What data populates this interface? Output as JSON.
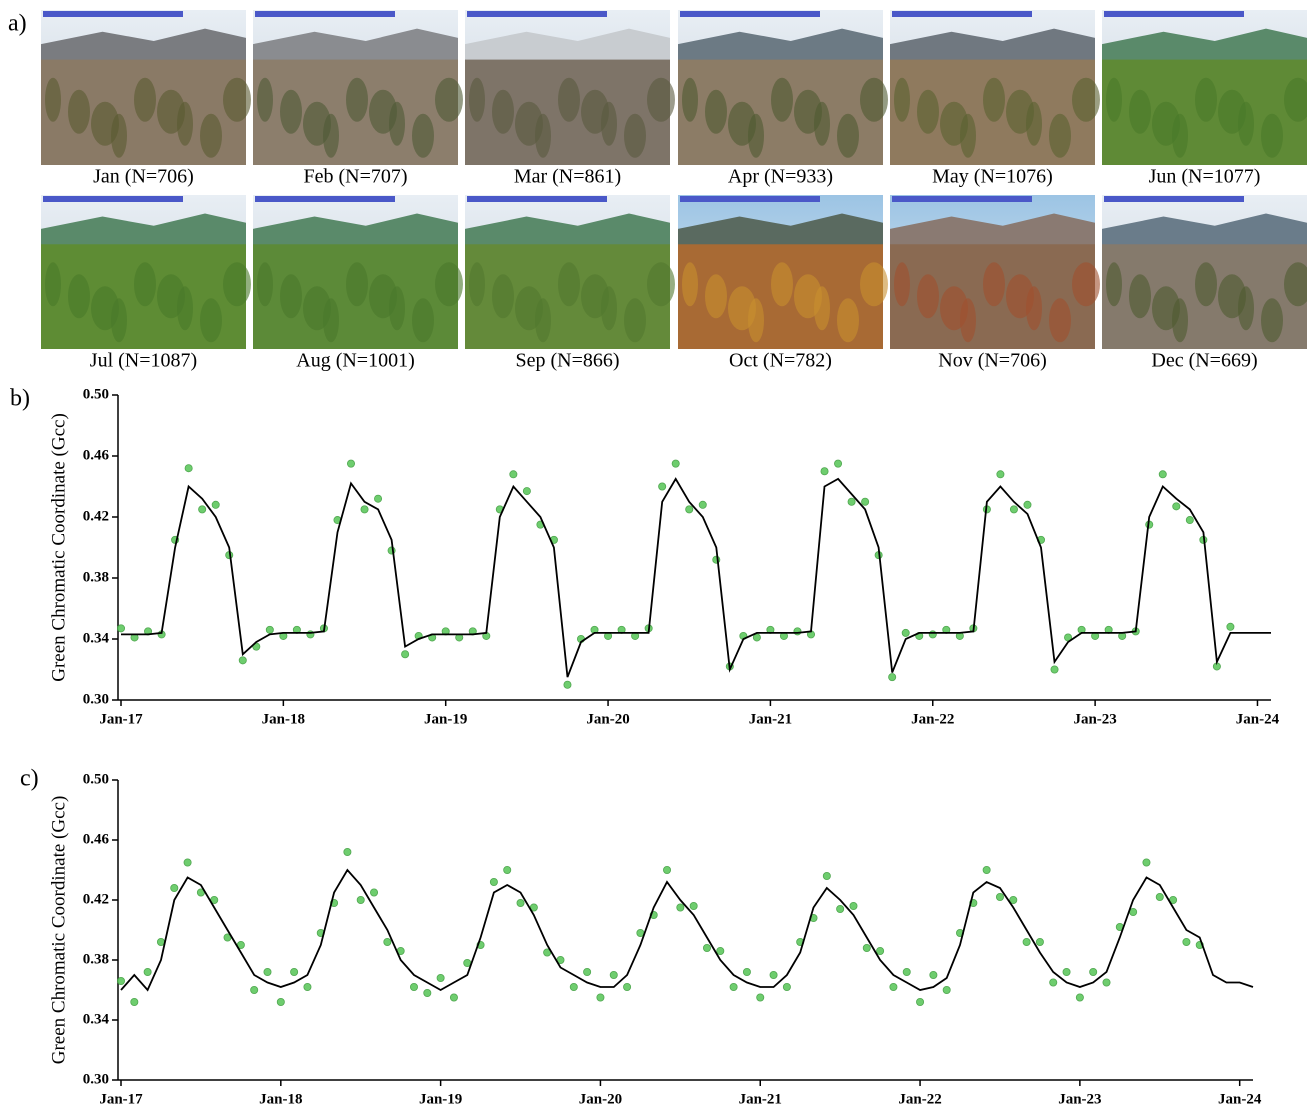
{
  "photos": {
    "label": "a)",
    "captions": [
      "Jan (N=706)",
      "Feb (N=707)",
      "Mar (N=861)",
      "Apr (N=933)",
      "May (N=1076)",
      "Jun (N=1077)",
      "Jul (N=1087)",
      "Aug (N=1001)",
      "Sep (N=866)",
      "Oct (N=782)",
      "Nov (N=706)",
      "Dec (N=669)"
    ]
  },
  "chart_data": [
    {
      "type": "scatter",
      "panel_label": "b)",
      "y_label": "Green Chromatic Coordinate (Gcc)",
      "x": [
        "Jan-17",
        "Feb-17",
        "Mar-17",
        "Apr-17",
        "May-17",
        "Jun-17",
        "Jul-17",
        "Aug-17",
        "Sep-17",
        "Oct-17",
        "Nov-17",
        "Dec-17",
        "Jan-18",
        "Feb-18",
        "Mar-18",
        "Apr-18",
        "May-18",
        "Jun-18",
        "Jul-18",
        "Aug-18",
        "Sep-18",
        "Oct-18",
        "Nov-18",
        "Dec-18",
        "Jan-19",
        "Feb-19",
        "Mar-19",
        "Apr-19",
        "May-19",
        "Jun-19",
        "Jul-19",
        "Aug-19",
        "Sep-19",
        "Oct-19",
        "Nov-19",
        "Dec-19",
        "Jan-20",
        "Feb-20",
        "Mar-20",
        "Apr-20",
        "May-20",
        "Jun-20",
        "Jul-20",
        "Aug-20",
        "Sep-20",
        "Oct-20",
        "Nov-20",
        "Dec-20",
        "Jan-21",
        "Feb-21",
        "Mar-21",
        "Apr-21",
        "May-21",
        "Jun-21",
        "Jul-21",
        "Aug-21",
        "Sep-21",
        "Oct-21",
        "Nov-21",
        "Dec-21",
        "Jan-22",
        "Feb-22",
        "Mar-22",
        "Apr-22",
        "May-22",
        "Jun-22",
        "Jul-22",
        "Aug-22",
        "Sep-22",
        "Oct-22",
        "Nov-22",
        "Dec-22",
        "Jan-23",
        "Feb-23",
        "Mar-23",
        "Apr-23",
        "May-23",
        "Jun-23",
        "Jul-23",
        "Aug-23",
        "Sep-23",
        "Oct-23",
        "Nov-23",
        "Dec-23",
        "Jan-24",
        "Feb-24"
      ],
      "series": [
        {
          "type": "scatter",
          "color": "#5fc85f",
          "values": [
            0.347,
            0.341,
            0.345,
            0.343,
            0.405,
            0.452,
            0.425,
            0.428,
            0.395,
            0.326,
            0.335,
            0.346,
            0.342,
            0.346,
            0.343,
            0.347,
            0.418,
            0.455,
            0.425,
            0.432,
            0.398,
            0.33,
            0.342,
            0.341,
            0.345,
            0.341,
            0.345,
            0.342,
            0.425,
            0.448,
            0.437,
            0.415,
            0.405,
            0.31,
            0.34,
            0.346,
            0.342,
            0.346,
            0.342,
            0.347,
            0.44,
            0.455,
            0.425,
            0.428,
            0.392,
            0.322,
            0.342,
            0.341,
            0.346,
            0.342,
            0.345,
            0.343,
            0.45,
            0.455,
            0.43,
            0.43,
            0.395,
            0.315,
            0.344,
            0.342,
            0.343,
            0.346,
            0.342,
            0.347,
            0.425,
            0.448,
            0.425,
            0.428,
            0.405,
            0.32,
            0.341,
            0.346,
            0.342,
            0.346,
            0.342,
            0.345,
            0.415,
            0.448,
            0.427,
            0.418,
            0.405,
            0.322,
            0.348,
            null,
            null,
            null
          ]
        },
        {
          "type": "line",
          "color": "#000000",
          "values": [
            0.343,
            0.343,
            0.343,
            0.344,
            0.4,
            0.44,
            0.432,
            0.42,
            0.4,
            0.33,
            0.338,
            0.343,
            0.344,
            0.344,
            0.344,
            0.345,
            0.41,
            0.442,
            0.43,
            0.425,
            0.405,
            0.335,
            0.34,
            0.343,
            0.343,
            0.343,
            0.343,
            0.344,
            0.42,
            0.44,
            0.43,
            0.42,
            0.4,
            0.315,
            0.338,
            0.344,
            0.344,
            0.344,
            0.344,
            0.344,
            0.43,
            0.445,
            0.43,
            0.42,
            0.4,
            0.32,
            0.34,
            0.344,
            0.344,
            0.344,
            0.344,
            0.345,
            0.44,
            0.445,
            0.435,
            0.425,
            0.4,
            0.318,
            0.34,
            0.344,
            0.344,
            0.344,
            0.344,
            0.345,
            0.43,
            0.44,
            0.43,
            0.422,
            0.4,
            0.325,
            0.338,
            0.344,
            0.344,
            0.344,
            0.344,
            0.345,
            0.42,
            0.44,
            0.432,
            0.425,
            0.41,
            0.325,
            0.344,
            0.344,
            0.344,
            0.344
          ]
        }
      ],
      "xlim": [
        "Jan-17",
        "Feb-24"
      ],
      "xticks": [
        "Jan-17",
        "Jan-18",
        "Jan-19",
        "Jan-20",
        "Jan-21",
        "Jan-22",
        "Jan-23",
        "Jan-24"
      ],
      "ylim": [
        0.3,
        0.5
      ],
      "yticks": [
        {
          "value": 0.3,
          "label": "0.30"
        },
        0.34,
        0.38,
        0.42,
        0.46,
        {
          "value": 0.5,
          "label": "0.50"
        }
      ]
    },
    {
      "type": "scatter",
      "panel_label": "c)",
      "y_label": "Green Chromatic Coordinate (Gcc)",
      "x": [
        "Jan-17",
        "Feb-17",
        "Mar-17",
        "Apr-17",
        "May-17",
        "Jun-17",
        "Jul-17",
        "Aug-17",
        "Sep-17",
        "Oct-17",
        "Nov-17",
        "Dec-17",
        "Jan-18",
        "Feb-18",
        "Mar-18",
        "Apr-18",
        "May-18",
        "Jun-18",
        "Jul-18",
        "Aug-18",
        "Sep-18",
        "Oct-18",
        "Nov-18",
        "Dec-18",
        "Jan-19",
        "Feb-19",
        "Mar-19",
        "Apr-19",
        "May-19",
        "Jun-19",
        "Jul-19",
        "Aug-19",
        "Sep-19",
        "Oct-19",
        "Nov-19",
        "Dec-19",
        "Jan-20",
        "Feb-20",
        "Mar-20",
        "Apr-20",
        "May-20",
        "Jun-20",
        "Jul-20",
        "Aug-20",
        "Sep-20",
        "Oct-20",
        "Nov-20",
        "Dec-20",
        "Jan-21",
        "Feb-21",
        "Mar-21",
        "Apr-21",
        "May-21",
        "Jun-21",
        "Jul-21",
        "Aug-21",
        "Sep-21",
        "Oct-21",
        "Nov-21",
        "Dec-21",
        "Jan-22",
        "Feb-22",
        "Mar-22",
        "Apr-22",
        "May-22",
        "Jun-22",
        "Jul-22",
        "Aug-22",
        "Sep-22",
        "Oct-22",
        "Nov-22",
        "Dec-22",
        "Jan-23",
        "Feb-23",
        "Mar-23",
        "Apr-23",
        "May-23",
        "Jun-23",
        "Jul-23",
        "Aug-23",
        "Sep-23",
        "Oct-23",
        "Nov-23",
        "Dec-23",
        "Jan-24",
        "Feb-24"
      ],
      "series": [
        {
          "type": "scatter",
          "color": "#5fc85f",
          "values": [
            0.366,
            0.352,
            0.372,
            0.392,
            0.428,
            0.445,
            0.425,
            0.42,
            0.395,
            0.39,
            0.36,
            0.372,
            0.352,
            0.372,
            0.362,
            0.398,
            0.418,
            0.452,
            0.42,
            0.425,
            0.392,
            0.386,
            0.362,
            0.358,
            0.368,
            0.355,
            0.378,
            0.39,
            0.432,
            0.44,
            0.418,
            0.415,
            0.385,
            0.38,
            0.362,
            0.372,
            0.355,
            0.37,
            0.362,
            0.398,
            0.41,
            0.44,
            0.415,
            0.416,
            0.388,
            0.386,
            0.362,
            0.372,
            0.355,
            0.37,
            0.362,
            0.392,
            0.408,
            0.436,
            0.414,
            0.416,
            0.388,
            0.386,
            0.362,
            0.372,
            0.352,
            0.37,
            0.36,
            0.398,
            0.418,
            0.44,
            0.422,
            0.42,
            0.392,
            0.392,
            0.365,
            0.372,
            0.355,
            0.372,
            0.365,
            0.402,
            0.412,
            0.445,
            0.422,
            0.42,
            0.392,
            0.39,
            null,
            null,
            null,
            null
          ]
        },
        {
          "type": "line",
          "color": "#000000",
          "values": [
            0.36,
            0.37,
            0.36,
            0.38,
            0.42,
            0.435,
            0.43,
            0.415,
            0.4,
            0.385,
            0.37,
            0.365,
            0.362,
            0.365,
            0.37,
            0.39,
            0.425,
            0.44,
            0.43,
            0.415,
            0.4,
            0.38,
            0.37,
            0.365,
            0.36,
            0.365,
            0.37,
            0.395,
            0.425,
            0.43,
            0.425,
            0.41,
            0.39,
            0.375,
            0.37,
            0.365,
            0.362,
            0.362,
            0.37,
            0.39,
            0.415,
            0.432,
            0.42,
            0.41,
            0.395,
            0.38,
            0.37,
            0.365,
            0.362,
            0.362,
            0.37,
            0.385,
            0.415,
            0.428,
            0.42,
            0.41,
            0.395,
            0.38,
            0.37,
            0.365,
            0.36,
            0.362,
            0.368,
            0.39,
            0.425,
            0.432,
            0.428,
            0.415,
            0.4,
            0.385,
            0.372,
            0.365,
            0.362,
            0.365,
            0.372,
            0.395,
            0.42,
            0.435,
            0.43,
            0.415,
            0.4,
            0.395,
            0.37,
            0.365,
            0.365,
            0.362
          ]
        }
      ],
      "xlim": [
        "Jan-17",
        "Feb-24"
      ],
      "xticks": [
        "Jan-17",
        "Jan-18",
        "Jan-19",
        "Jan-20",
        "Jan-21",
        "Jan-22",
        "Jan-23",
        "Jan-24"
      ],
      "ylim": [
        0.3,
        0.5
      ],
      "yticks": [
        {
          "value": 0.3,
          "label": "0.30"
        },
        0.34,
        0.38,
        0.42,
        0.46,
        {
          "value": 0.5,
          "label": "0.50"
        }
      ]
    }
  ]
}
